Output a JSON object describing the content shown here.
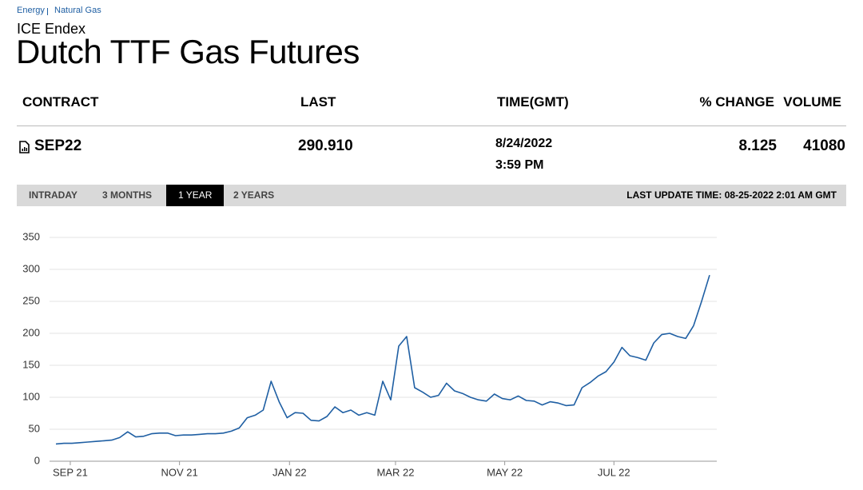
{
  "breadcrumb": [
    "Energy",
    "Natural Gas"
  ],
  "exchange": "ICE Endex",
  "title": "Dutch TTF Gas Futures",
  "table": {
    "headers": [
      "CONTRACT",
      "LAST",
      "TIME(GMT)",
      "% CHANGE",
      "VOLUME"
    ],
    "row": {
      "contract": "SEP22",
      "last": "290.910",
      "date": "8/24/2022",
      "time": "3:59 PM",
      "change": "8.125",
      "volume": "41080"
    }
  },
  "tabs": [
    "INTRADAY",
    "3 MONTHS",
    "1 YEAR",
    "2 YEARS"
  ],
  "active_tab": 2,
  "last_update": "LAST UPDATE TIME: 08-25-2022 2:01 AM GMT",
  "chart_data": {
    "type": "line",
    "color": "#1f5fa3",
    "grid": true,
    "values": [
      27,
      28,
      28,
      29,
      30,
      31,
      32,
      33,
      37,
      46,
      38,
      39,
      43,
      44,
      44,
      40,
      41,
      41,
      42,
      43,
      43,
      44,
      47,
      52,
      68,
      72,
      80,
      125,
      93,
      68,
      76,
      75,
      64,
      63,
      70,
      85,
      76,
      80,
      72,
      76,
      72,
      125,
      96,
      180,
      195,
      115,
      108,
      100,
      103,
      122,
      110,
      106,
      100,
      96,
      94,
      105,
      98,
      96,
      102,
      95,
      94,
      88,
      93,
      91,
      87,
      88,
      115,
      123,
      133,
      140,
      155,
      178,
      165,
      162,
      158,
      185,
      198,
      200,
      195,
      192,
      212,
      250,
      291
    ],
    "xlim": [
      0,
      82
    ],
    "xticks": [
      {
        "value": 1.8,
        "label": "SEP 21"
      },
      {
        "value": 15.5,
        "label": "NOV 21"
      },
      {
        "value": 29.3,
        "label": "JAN 22"
      },
      {
        "value": 42.6,
        "label": "MAR 22"
      },
      {
        "value": 56.3,
        "label": "MAY 22"
      },
      {
        "value": 70,
        "label": "JUL 22"
      }
    ],
    "ylim": [
      0,
      350
    ],
    "yticks": [
      0,
      50,
      100,
      150,
      200,
      250,
      300,
      350
    ]
  }
}
